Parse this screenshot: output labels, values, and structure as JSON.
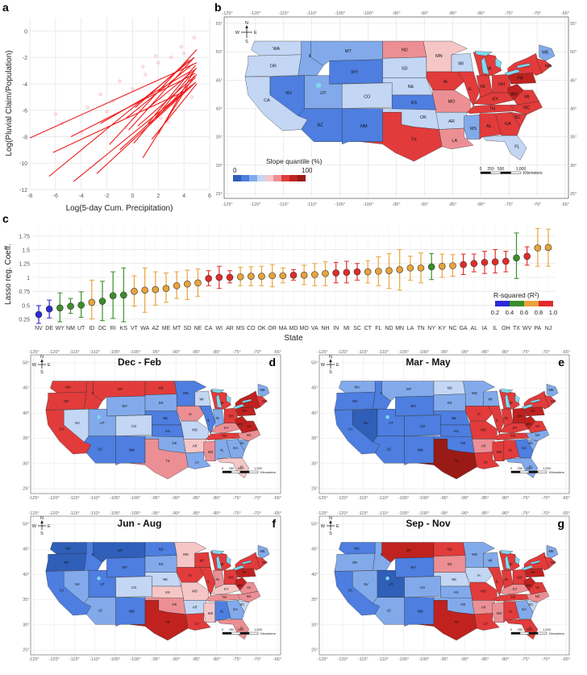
{
  "panels": {
    "a": "a",
    "b": "b",
    "c": "c",
    "d": "d",
    "e": "e",
    "f": "f",
    "g": "g"
  },
  "colors": {
    "q1": "#2f5fb8",
    "q2": "#4d7ee0",
    "q3": "#82aaeb",
    "q4": "#c3d6f4",
    "q5": "#f6c6c6",
    "q6": "#ec8f94",
    "q7": "#e23b3b",
    "q8": "#c0221f",
    "q9": "#9a1a16",
    "line": "#ee1c1c",
    "points": "#f2b8c4",
    "ocean": "#7fd8f0",
    "r2_1": "#2b2bd6",
    "r2_2": "#3a8e2a",
    "r2_3": "#e8a33a",
    "r2_4": "#e22a2a"
  },
  "chart_data": [
    {
      "type": "line",
      "id": "a",
      "xlabel": "Log(5-day Cum. Precipitation)",
      "ylabel": "Log(Pluvial Claim/Population)",
      "xlim": [
        -8,
        6
      ],
      "ylim": [
        -12,
        1
      ],
      "xticks": [
        -8,
        -6,
        -4,
        -2,
        0,
        2,
        4,
        6
      ],
      "yticks": [
        0,
        -2,
        -4,
        -6,
        -8,
        -10,
        -12
      ],
      "grid": true,
      "series": [
        {
          "x": [
            -8,
            5
          ],
          "y": [
            -8.1,
            -2.4
          ]
        },
        {
          "x": [
            -6.5,
            4.8
          ],
          "y": [
            -11.0,
            -2.0
          ]
        },
        {
          "x": [
            -4.6,
            4.9
          ],
          "y": [
            -11.4,
            -3.9
          ]
        },
        {
          "x": [
            -6.2,
            4.2
          ],
          "y": [
            -9.2,
            -4.5
          ]
        },
        {
          "x": [
            -4.8,
            4.9
          ],
          "y": [
            -8.0,
            -3.2
          ]
        },
        {
          "x": [
            -2.8,
            4.9
          ],
          "y": [
            -10.8,
            -3.9
          ]
        },
        {
          "x": [
            -2.5,
            4.6
          ],
          "y": [
            -7.0,
            -3.0
          ]
        },
        {
          "x": [
            -1.8,
            5.0
          ],
          "y": [
            -8.6,
            -1.4
          ]
        },
        {
          "x": [
            -0.3,
            4.8
          ],
          "y": [
            -7.5,
            -2.0
          ]
        },
        {
          "x": [
            -0.5,
            4.7
          ],
          "y": [
            -6.6,
            -2.5
          ]
        },
        {
          "x": [
            0.1,
            4.9
          ],
          "y": [
            -8.5,
            -2.9
          ]
        },
        {
          "x": [
            0.4,
            5.0
          ],
          "y": [
            -7.2,
            -3.3
          ]
        },
        {
          "x": [
            0.8,
            4.8
          ],
          "y": [
            -9.6,
            -3.4
          ]
        },
        {
          "x": [
            1.0,
            5.0
          ],
          "y": [
            -6.0,
            -2.8
          ]
        },
        {
          "x": [
            1.2,
            4.9
          ],
          "y": [
            -7.0,
            -2.6
          ]
        },
        {
          "x": [
            1.5,
            5.0
          ],
          "y": [
            -8.2,
            -4.0
          ]
        },
        {
          "x": [
            1.8,
            4.9
          ],
          "y": [
            -6.6,
            -3.5
          ]
        },
        {
          "x": [
            2.0,
            4.8
          ],
          "y": [
            -7.8,
            -3.0
          ]
        },
        {
          "x": [
            -1.0,
            4.6
          ],
          "y": [
            -9.0,
            -4.1
          ]
        },
        {
          "x": [
            0.2,
            4.4
          ],
          "y": [
            -5.8,
            -2.2
          ]
        }
      ],
      "scatter": [
        {
          "x": -6,
          "y": -6.3
        },
        {
          "x": -5.5,
          "y": -7.0
        },
        {
          "x": -3.5,
          "y": -5.8
        },
        {
          "x": -2.5,
          "y": -4.8
        },
        {
          "x": -1.5,
          "y": -5.3
        },
        {
          "x": -1,
          "y": -3.8
        },
        {
          "x": 0,
          "y": -4.4
        },
        {
          "x": 0.5,
          "y": -5.9
        },
        {
          "x": 1,
          "y": -3.3
        },
        {
          "x": 1.5,
          "y": -4.8
        },
        {
          "x": 2,
          "y": -2.4
        },
        {
          "x": 2.5,
          "y": -3.9
        },
        {
          "x": 3,
          "y": -2.0
        },
        {
          "x": 3.5,
          "y": -4.4
        },
        {
          "x": 4,
          "y": -1.7
        },
        {
          "x": 4.5,
          "y": -2.9
        },
        {
          "x": 4.8,
          "y": -0.5
        },
        {
          "x": 3.2,
          "y": -5.6
        },
        {
          "x": 2.2,
          "y": -6.6
        },
        {
          "x": -0.5,
          "y": -7.3
        },
        {
          "x": 4.2,
          "y": -3.4
        },
        {
          "x": 3.8,
          "y": -1.2
        },
        {
          "x": 1.8,
          "y": -1.9
        },
        {
          "x": 0.8,
          "y": -2.7
        },
        {
          "x": -2,
          "y": -6.1
        },
        {
          "x": -4,
          "y": -7.7
        },
        {
          "x": 4.6,
          "y": -5.0
        },
        {
          "x": 2.8,
          "y": -6.9
        }
      ]
    },
    {
      "type": "scatter",
      "id": "c",
      "xlabel": "State",
      "ylabel": "Lasso reg. Coeff.",
      "ylim": [
        0.2,
        1.9
      ],
      "yticks": [
        0.25,
        0.5,
        0.75,
        1.0,
        1.25,
        1.5,
        1.75
      ],
      "grid": true,
      "categories": [
        "NV",
        "DE",
        "WY",
        "NM",
        "UT",
        "ID",
        "DC",
        "RI",
        "KS",
        "VT",
        "WA",
        "AZ",
        "ME",
        "MT",
        "SD",
        "NE",
        "CA",
        "WI",
        "AR",
        "MS",
        "CO",
        "OK",
        "OR",
        "MA",
        "MD",
        "MO",
        "VA",
        "NH",
        "IN",
        "MI",
        "SC",
        "CT",
        "FL",
        "ND",
        "MN",
        "LA",
        "TN",
        "NY",
        "KY",
        "NC",
        "GA",
        "AL",
        "IA",
        "IL",
        "OH",
        "TX",
        "WV",
        "PA",
        "NJ"
      ],
      "values": [
        0.33,
        0.43,
        0.45,
        0.48,
        0.5,
        0.55,
        0.57,
        0.67,
        0.68,
        0.75,
        0.77,
        0.78,
        0.8,
        0.85,
        0.88,
        0.9,
        0.98,
        1.0,
        1.0,
        1.01,
        1.02,
        1.02,
        1.03,
        1.03,
        1.04,
        1.04,
        1.05,
        1.07,
        1.08,
        1.09,
        1.1,
        1.1,
        1.11,
        1.12,
        1.14,
        1.17,
        1.17,
        1.19,
        1.2,
        1.21,
        1.23,
        1.25,
        1.27,
        1.28,
        1.29,
        1.35,
        1.38,
        1.53,
        1.54
      ],
      "lower": [
        0.17,
        0.27,
        0.2,
        0.35,
        0.28,
        0.25,
        0.22,
        0.26,
        0.2,
        0.48,
        0.37,
        0.5,
        0.55,
        0.62,
        0.6,
        0.66,
        0.85,
        0.8,
        0.9,
        0.85,
        0.85,
        0.85,
        0.83,
        0.9,
        0.95,
        0.87,
        0.85,
        0.85,
        0.9,
        0.9,
        0.95,
        0.9,
        0.85,
        0.8,
        0.77,
        0.95,
        0.9,
        0.96,
        1.0,
        1.02,
        1.05,
        1.1,
        1.07,
        1.08,
        1.1,
        0.98,
        1.22,
        1.2,
        1.2
      ],
      "upper": [
        0.49,
        0.59,
        0.72,
        0.62,
        0.74,
        0.95,
        0.93,
        1.1,
        1.17,
        1.03,
        1.17,
        1.1,
        1.08,
        1.1,
        1.13,
        1.15,
        1.12,
        1.2,
        1.12,
        1.18,
        1.19,
        1.2,
        1.23,
        1.17,
        1.14,
        1.22,
        1.25,
        1.28,
        1.27,
        1.29,
        1.25,
        1.3,
        1.37,
        1.43,
        1.5,
        1.38,
        1.44,
        1.43,
        1.42,
        1.41,
        1.42,
        1.42,
        1.47,
        1.5,
        1.47,
        1.8,
        1.55,
        1.88,
        1.87
      ],
      "r2": [
        1,
        1,
        2,
        2,
        2,
        3,
        2,
        2,
        2,
        3,
        3,
        3,
        3,
        3,
        3,
        3,
        4,
        4,
        4,
        3,
        3,
        3,
        3,
        3,
        4,
        3,
        3,
        3,
        4,
        4,
        4,
        3,
        3,
        3,
        3,
        3,
        3,
        2,
        3,
        3,
        4,
        4,
        4,
        4,
        4,
        2,
        4,
        3,
        3
      ],
      "legend": {
        "title": "R-squared (R²)",
        "ticks": [
          "0.2",
          "0.4",
          "0.6",
          "0.8",
          "1.0"
        ],
        "position": "bottom-right"
      }
    }
  ],
  "mapb": {
    "xticks": [
      "-125°",
      "-120°",
      "-115°",
      "-110°",
      "-105°",
      "-100°",
      "-95°",
      "-90°",
      "-85°",
      "-80°",
      "-75°",
      "-70°",
      "-65°"
    ],
    "yticks": [
      "55°",
      "50°",
      "45°",
      "40°",
      "35°",
      "30°",
      "25°"
    ],
    "legend_title": "Slope quantile (%)",
    "legend_min": "0",
    "legend_max": "100",
    "scale_labels": [
      "0",
      "250",
      "500",
      "1,000"
    ],
    "scale_unit": "Kilometers"
  },
  "small_map": {
    "xticks": [
      "-125°",
      "-120°",
      "-115°",
      "-110°",
      "-105°",
      "-100°",
      "-95°",
      "-90°",
      "-85°",
      "-80°",
      "-75°",
      "-70°",
      "-65°"
    ],
    "yticks": [
      "50°",
      "45°",
      "40°",
      "35°",
      "30°",
      "25°"
    ],
    "scale_labels": [
      "0",
      "250",
      "500",
      "1,000"
    ],
    "scale_unit": "Kilometers"
  },
  "compass": {
    "n": "N",
    "s": "S",
    "w": "W",
    "e": "E"
  },
  "seasons": {
    "d": "Dec - Feb",
    "e": "Mar - May",
    "f": "Jun - Aug",
    "g": "Sep - Nov"
  },
  "states": [
    {
      "id": "WA",
      "b": 4,
      "d": 7,
      "e": 3,
      "f": 1,
      "g": 2
    },
    {
      "id": "OR",
      "b": 4,
      "d": 7,
      "e": 2,
      "f": 1,
      "g": 3
    },
    {
      "id": "CA",
      "b": 4,
      "d": 7,
      "e": 2,
      "f": 2,
      "g": 2
    },
    {
      "id": "ID",
      "b": 3,
      "d": 7,
      "e": 2,
      "f": 2,
      "g": 3
    },
    {
      "id": "NV",
      "b": 2,
      "d": 4,
      "e": 1,
      "f": 3,
      "g": 3
    },
    {
      "id": "MT",
      "b": 3,
      "d": 7,
      "e": 3,
      "f": 1,
      "g": 8
    },
    {
      "id": "WY",
      "b": 2,
      "d": 3,
      "e": 2,
      "f": 2,
      "g": 2
    },
    {
      "id": "UT",
      "b": 3,
      "d": 3,
      "e": 2,
      "f": 2,
      "g": 1
    },
    {
      "id": "AZ",
      "b": 2,
      "d": 2,
      "e": 2,
      "f": 3,
      "g": 3
    },
    {
      "id": "CO",
      "b": 4,
      "d": 4,
      "e": 2,
      "f": 4,
      "g": 3
    },
    {
      "id": "NM",
      "b": 2,
      "d": 2,
      "e": 2,
      "f": 2,
      "g": 2
    },
    {
      "id": "ND",
      "b": 6,
      "d": 7,
      "e": 4,
      "f": 2,
      "g": 7
    },
    {
      "id": "SD",
      "b": 4,
      "d": 3,
      "e": 3,
      "f": 3,
      "g": 6
    },
    {
      "id": "NE",
      "b": 4,
      "d": 2,
      "e": 2,
      "f": 4,
      "g": 4
    },
    {
      "id": "KS",
      "b": 2,
      "d": 2,
      "e": 2,
      "f": 5,
      "g": 3
    },
    {
      "id": "OK",
      "b": 4,
      "d": 3,
      "e": 2,
      "f": 6,
      "g": 3
    },
    {
      "id": "TX",
      "b": 7,
      "d": 6,
      "e": 9,
      "f": 8,
      "g": 8
    },
    {
      "id": "MN",
      "b": 5,
      "d": 2,
      "e": 3,
      "f": 5,
      "g": 3
    },
    {
      "id": "IA",
      "b": 7,
      "d": 6,
      "e": 7,
      "f": 7,
      "g": 4
    },
    {
      "id": "MO",
      "b": 6,
      "d": 4,
      "e": 7,
      "f": 5,
      "g": 7
    },
    {
      "id": "AR",
      "b": 4,
      "d": 5,
      "e": 6,
      "f": 4,
      "g": 6
    },
    {
      "id": "LA",
      "b": 6,
      "d": 3,
      "e": 7,
      "f": 7,
      "g": 7
    },
    {
      "id": "WI",
      "b": 4,
      "d": 4,
      "e": 3,
      "f": 7,
      "g": 3
    },
    {
      "id": "IL",
      "b": 7,
      "d": 2,
      "e": 7,
      "f": 7,
      "g": 7
    },
    {
      "id": "MS",
      "b": 3,
      "d": 6,
      "e": 7,
      "f": 5,
      "g": 6
    },
    {
      "id": "MI",
      "b": 7,
      "d": 7,
      "e": 7,
      "f": 7,
      "g": 7
    },
    {
      "id": "IN",
      "b": 7,
      "d": 3,
      "e": 7,
      "f": 6,
      "g": 7
    },
    {
      "id": "KY",
      "b": 7,
      "d": 6,
      "e": 7,
      "f": 5,
      "g": 6
    },
    {
      "id": "TN",
      "b": 7,
      "d": 7,
      "e": 7,
      "f": 6,
      "g": 7
    },
    {
      "id": "AL",
      "b": 7,
      "d": 3,
      "e": 7,
      "f": 2,
      "g": 7
    },
    {
      "id": "GA",
      "b": 7,
      "d": 3,
      "e": 2,
      "f": 3,
      "g": 3
    },
    {
      "id": "FL",
      "b": 4,
      "d": 5,
      "e": 3,
      "f": 6,
      "g": 7
    },
    {
      "id": "OH",
      "b": 7,
      "d": 7,
      "e": 8,
      "f": 7,
      "g": 7
    },
    {
      "id": "WV",
      "b": 8,
      "d": 8,
      "e": 8,
      "f": 8,
      "g": 8
    },
    {
      "id": "VA",
      "b": 7,
      "d": 8,
      "e": 7,
      "f": 6,
      "g": 7
    },
    {
      "id": "NC",
      "b": 7,
      "d": 6,
      "e": 3,
      "f": 6,
      "g": 6
    },
    {
      "id": "SC",
      "b": 7,
      "d": 3,
      "e": 3,
      "f": 4,
      "g": 4
    },
    {
      "id": "PA",
      "b": 8,
      "d": 8,
      "e": 8,
      "f": 8,
      "g": 8
    },
    {
      "id": "NY",
      "b": 7,
      "d": 8,
      "e": 7,
      "f": 7,
      "g": 7
    },
    {
      "id": "ME",
      "b": 3,
      "d": 3,
      "e": 3,
      "f": 3,
      "g": 3
    },
    {
      "id": "MA",
      "b": 7,
      "d": 7,
      "e": 7,
      "f": 7,
      "g": 7
    }
  ]
}
